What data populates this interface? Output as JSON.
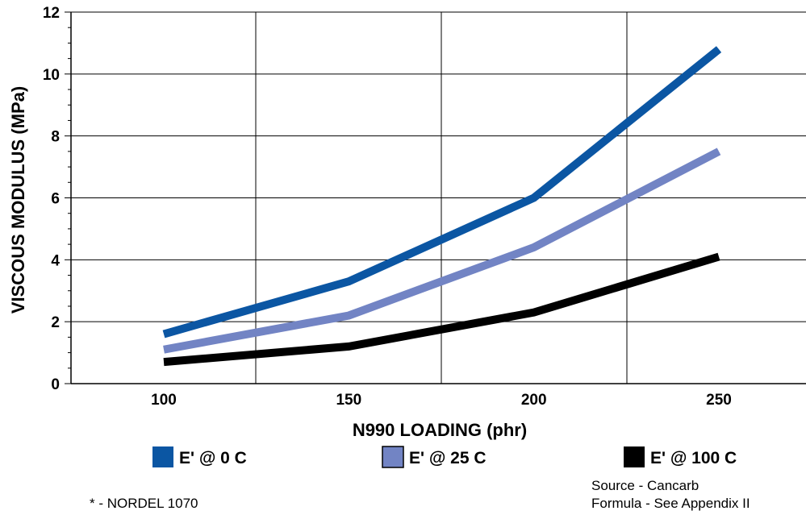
{
  "chart_data": {
    "type": "line",
    "xlabel": "N990 LOADING (phr)",
    "ylabel": "VISCOUS MODULUS (MPa)",
    "x": [
      100,
      150,
      200,
      250
    ],
    "x_ticks": [
      "100",
      "150",
      "200",
      "250"
    ],
    "y_ticks": [
      "0",
      "2",
      "4",
      "6",
      "8",
      "10",
      "12"
    ],
    "ylim": [
      0,
      12
    ],
    "grid": true,
    "legend_position": "bottom",
    "series": [
      {
        "name": "E' @ 0 C",
        "color": "#0b56a3",
        "values": [
          1.6,
          3.3,
          6.0,
          10.8
        ]
      },
      {
        "name": "E' @ 25 C",
        "color": "#7284c4",
        "values": [
          1.1,
          2.2,
          4.4,
          7.5
        ]
      },
      {
        "name": "E' @ 100 C",
        "color": "#000000",
        "values": [
          0.7,
          1.2,
          2.3,
          4.1
        ]
      }
    ]
  },
  "notes": {
    "footnote": "* - NORDEL 1070",
    "source": "Source - Cancarb",
    "formula": "Formula - See Appendix II"
  }
}
